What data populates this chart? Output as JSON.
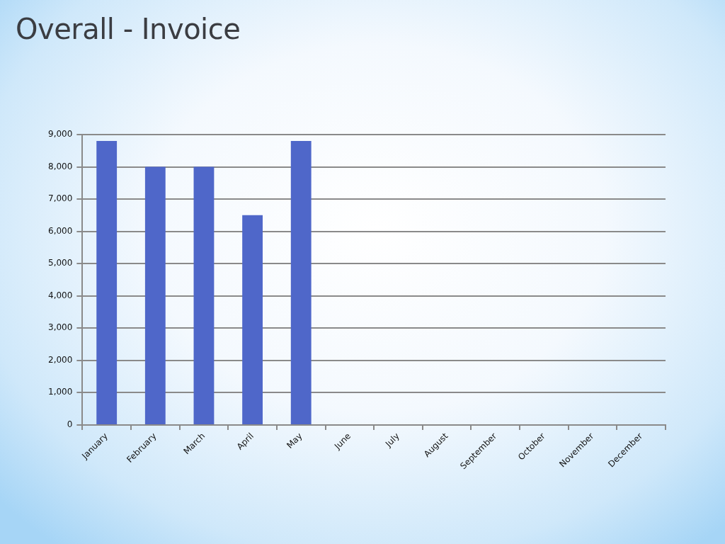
{
  "chart_data": {
    "type": "bar",
    "title": "Overall - Invoice",
    "categories": [
      "January",
      "February",
      "March",
      "April",
      "May",
      "June",
      "July",
      "August",
      "September",
      "October",
      "November",
      "December"
    ],
    "values": [
      8800,
      8000,
      8000,
      6500,
      8800,
      null,
      null,
      null,
      null,
      null,
      null,
      null
    ],
    "color": "#4f67c9",
    "ylim": [
      0,
      9000
    ],
    "yticks": [
      0,
      {
        "value": 1000,
        "label": "1,000"
      },
      {
        "value": 2000,
        "label": "2,000"
      },
      {
        "value": 3000,
        "label": "3,000"
      },
      {
        "value": 4000,
        "label": "4,000"
      },
      {
        "value": 5000,
        "label": "5,000"
      },
      {
        "value": 6000,
        "label": "6,000"
      },
      {
        "value": 7000,
        "label": "7,000"
      },
      {
        "value": 8000,
        "label": "8,000"
      },
      {
        "value": 9000,
        "label": "9,000"
      }
    ],
    "grid": "y"
  }
}
